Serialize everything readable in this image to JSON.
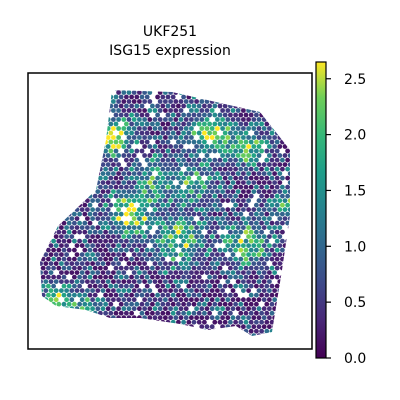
{
  "chart_data": {
    "type": "scatter",
    "title": "UKF251",
    "subtitle": "ISG15 expression",
    "xlabel": "",
    "ylabel": "",
    "grid": false,
    "colormap": "viridis",
    "colorbar": {
      "min": 0.0,
      "max": 2.65,
      "ticks": [
        0.0,
        0.5,
        1.0,
        1.5,
        2.0,
        2.5
      ],
      "tick_labels": [
        "0.0",
        "0.5",
        "1.0",
        "1.5",
        "2.0",
        "2.5"
      ]
    },
    "background_expression": 0.15,
    "hotspots": [
      {
        "x": 0.3,
        "y": 0.23,
        "radius": 0.045,
        "peak": 2.5
      },
      {
        "x": 0.64,
        "y": 0.22,
        "radius": 0.05,
        "peak": 2.3
      },
      {
        "x": 0.77,
        "y": 0.27,
        "radius": 0.04,
        "peak": 2.0
      },
      {
        "x": 0.36,
        "y": 0.51,
        "radius": 0.05,
        "peak": 2.2
      },
      {
        "x": 0.53,
        "y": 0.6,
        "radius": 0.06,
        "peak": 1.7
      },
      {
        "x": 0.77,
        "y": 0.62,
        "radius": 0.05,
        "peak": 1.9
      },
      {
        "x": 0.91,
        "y": 0.48,
        "radius": 0.03,
        "peak": 1.7
      },
      {
        "x": 0.11,
        "y": 0.82,
        "radius": 0.035,
        "peak": 2.5
      },
      {
        "x": 0.21,
        "y": 0.86,
        "radius": 0.025,
        "peak": 2.1
      },
      {
        "x": 0.45,
        "y": 0.38,
        "radius": 0.05,
        "peak": 1.3
      },
      {
        "x": 0.58,
        "y": 0.4,
        "radius": 0.05,
        "peak": 1.2
      }
    ]
  }
}
